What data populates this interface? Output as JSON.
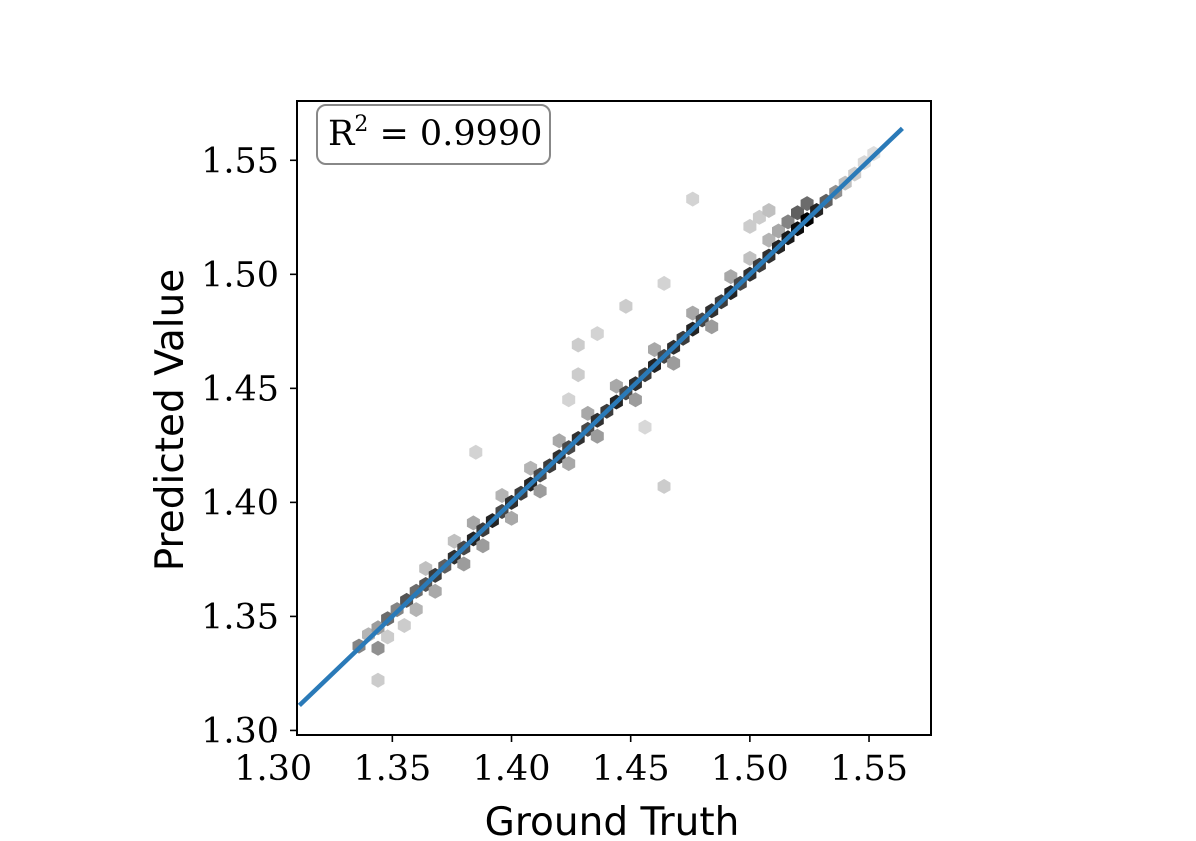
{
  "chart_data": {
    "type": "scatter",
    "style": "hexbin density with regression line",
    "xlabel": "Ground Truth",
    "ylabel": "Predicted Value",
    "xlim": [
      1.31,
      1.576
    ],
    "ylim": [
      1.298,
      1.576
    ],
    "xticks": [
      "1.30",
      "1.35",
      "1.40",
      "1.45",
      "1.50",
      "1.55"
    ],
    "yticks": [
      "1.30",
      "1.35",
      "1.40",
      "1.45",
      "1.50",
      "1.55"
    ],
    "annotation": {
      "r2_label": "R",
      "r2_sup": "2",
      "r2_value": " = 0.9990"
    },
    "fit_line": {
      "x": [
        1.311,
        1.564
      ],
      "y": [
        1.311,
        1.564
      ],
      "color": "#2a7ab8"
    },
    "hexbins": [
      {
        "x": 1.336,
        "y": 1.337,
        "d": 0.45
      },
      {
        "x": 1.34,
        "y": 1.342,
        "d": 0.25
      },
      {
        "x": 1.344,
        "y": 1.345,
        "d": 0.35
      },
      {
        "x": 1.344,
        "y": 1.336,
        "d": 0.4
      },
      {
        "x": 1.348,
        "y": 1.349,
        "d": 0.55
      },
      {
        "x": 1.348,
        "y": 1.341,
        "d": 0.15
      },
      {
        "x": 1.352,
        "y": 1.353,
        "d": 0.45
      },
      {
        "x": 1.355,
        "y": 1.346,
        "d": 0.15
      },
      {
        "x": 1.356,
        "y": 1.357,
        "d": 0.65
      },
      {
        "x": 1.36,
        "y": 1.361,
        "d": 0.55
      },
      {
        "x": 1.36,
        "y": 1.353,
        "d": 0.25
      },
      {
        "x": 1.364,
        "y": 1.364,
        "d": 0.65
      },
      {
        "x": 1.364,
        "y": 1.371,
        "d": 0.2
      },
      {
        "x": 1.368,
        "y": 1.368,
        "d": 0.75
      },
      {
        "x": 1.368,
        "y": 1.361,
        "d": 0.3
      },
      {
        "x": 1.372,
        "y": 1.372,
        "d": 0.6
      },
      {
        "x": 1.376,
        "y": 1.376,
        "d": 0.8
      },
      {
        "x": 1.376,
        "y": 1.383,
        "d": 0.2
      },
      {
        "x": 1.38,
        "y": 1.38,
        "d": 0.7
      },
      {
        "x": 1.38,
        "y": 1.373,
        "d": 0.35
      },
      {
        "x": 1.384,
        "y": 1.384,
        "d": 0.85
      },
      {
        "x": 1.384,
        "y": 1.391,
        "d": 0.3
      },
      {
        "x": 1.388,
        "y": 1.388,
        "d": 0.75
      },
      {
        "x": 1.388,
        "y": 1.381,
        "d": 0.35
      },
      {
        "x": 1.392,
        "y": 1.392,
        "d": 0.85
      },
      {
        "x": 1.396,
        "y": 1.396,
        "d": 0.7
      },
      {
        "x": 1.396,
        "y": 1.403,
        "d": 0.25
      },
      {
        "x": 1.4,
        "y": 1.4,
        "d": 0.8
      },
      {
        "x": 1.4,
        "y": 1.393,
        "d": 0.3
      },
      {
        "x": 1.404,
        "y": 1.404,
        "d": 0.75
      },
      {
        "x": 1.408,
        "y": 1.408,
        "d": 0.85
      },
      {
        "x": 1.408,
        "y": 1.415,
        "d": 0.25
      },
      {
        "x": 1.412,
        "y": 1.412,
        "d": 0.7
      },
      {
        "x": 1.412,
        "y": 1.405,
        "d": 0.35
      },
      {
        "x": 1.416,
        "y": 1.416,
        "d": 0.75
      },
      {
        "x": 1.42,
        "y": 1.42,
        "d": 0.8
      },
      {
        "x": 1.42,
        "y": 1.427,
        "d": 0.3
      },
      {
        "x": 1.424,
        "y": 1.424,
        "d": 0.7
      },
      {
        "x": 1.424,
        "y": 1.417,
        "d": 0.3
      },
      {
        "x": 1.428,
        "y": 1.428,
        "d": 0.8
      },
      {
        "x": 1.432,
        "y": 1.432,
        "d": 0.7
      },
      {
        "x": 1.432,
        "y": 1.439,
        "d": 0.3
      },
      {
        "x": 1.436,
        "y": 1.436,
        "d": 0.8
      },
      {
        "x": 1.436,
        "y": 1.429,
        "d": 0.35
      },
      {
        "x": 1.44,
        "y": 1.44,
        "d": 0.75
      },
      {
        "x": 1.444,
        "y": 1.444,
        "d": 0.85
      },
      {
        "x": 1.444,
        "y": 1.451,
        "d": 0.3
      },
      {
        "x": 1.448,
        "y": 1.448,
        "d": 0.7
      },
      {
        "x": 1.452,
        "y": 1.452,
        "d": 0.8
      },
      {
        "x": 1.452,
        "y": 1.445,
        "d": 0.35
      },
      {
        "x": 1.456,
        "y": 1.456,
        "d": 0.75
      },
      {
        "x": 1.46,
        "y": 1.46,
        "d": 0.85
      },
      {
        "x": 1.46,
        "y": 1.467,
        "d": 0.3
      },
      {
        "x": 1.464,
        "y": 1.464,
        "d": 0.7
      },
      {
        "x": 1.468,
        "y": 1.468,
        "d": 0.8
      },
      {
        "x": 1.468,
        "y": 1.461,
        "d": 0.35
      },
      {
        "x": 1.472,
        "y": 1.472,
        "d": 0.75
      },
      {
        "x": 1.476,
        "y": 1.476,
        "d": 0.85
      },
      {
        "x": 1.476,
        "y": 1.483,
        "d": 0.3
      },
      {
        "x": 1.48,
        "y": 1.48,
        "d": 0.7
      },
      {
        "x": 1.484,
        "y": 1.484,
        "d": 0.8
      },
      {
        "x": 1.484,
        "y": 1.477,
        "d": 0.35
      },
      {
        "x": 1.488,
        "y": 1.488,
        "d": 0.75
      },
      {
        "x": 1.492,
        "y": 1.492,
        "d": 0.85
      },
      {
        "x": 1.492,
        "y": 1.499,
        "d": 0.3
      },
      {
        "x": 1.496,
        "y": 1.496,
        "d": 0.7
      },
      {
        "x": 1.5,
        "y": 1.5,
        "d": 0.8
      },
      {
        "x": 1.5,
        "y": 1.507,
        "d": 0.2
      },
      {
        "x": 1.504,
        "y": 1.504,
        "d": 0.75
      },
      {
        "x": 1.508,
        "y": 1.508,
        "d": 0.8
      },
      {
        "x": 1.508,
        "y": 1.515,
        "d": 0.25
      },
      {
        "x": 1.512,
        "y": 1.512,
        "d": 0.85
      },
      {
        "x": 1.512,
        "y": 1.519,
        "d": 0.3
      },
      {
        "x": 1.516,
        "y": 1.516,
        "d": 0.9
      },
      {
        "x": 1.516,
        "y": 1.523,
        "d": 0.45
      },
      {
        "x": 1.52,
        "y": 1.52,
        "d": 0.95
      },
      {
        "x": 1.52,
        "y": 1.527,
        "d": 0.6
      },
      {
        "x": 1.524,
        "y": 1.524,
        "d": 1.0
      },
      {
        "x": 1.524,
        "y": 1.531,
        "d": 0.55
      },
      {
        "x": 1.528,
        "y": 1.528,
        "d": 0.85
      },
      {
        "x": 1.532,
        "y": 1.532,
        "d": 0.6
      },
      {
        "x": 1.536,
        "y": 1.536,
        "d": 0.4
      },
      {
        "x": 1.54,
        "y": 1.54,
        "d": 0.2
      },
      {
        "x": 1.544,
        "y": 1.544,
        "d": 0.15
      },
      {
        "x": 1.548,
        "y": 1.549,
        "d": 0.1
      },
      {
        "x": 1.552,
        "y": 1.553,
        "d": 0.08
      },
      {
        "x": 1.344,
        "y": 1.322,
        "d": 0.15
      },
      {
        "x": 1.385,
        "y": 1.422,
        "d": 0.12
      },
      {
        "x": 1.424,
        "y": 1.445,
        "d": 0.12
      },
      {
        "x": 1.428,
        "y": 1.456,
        "d": 0.15
      },
      {
        "x": 1.428,
        "y": 1.469,
        "d": 0.15
      },
      {
        "x": 1.436,
        "y": 1.474,
        "d": 0.12
      },
      {
        "x": 1.448,
        "y": 1.486,
        "d": 0.15
      },
      {
        "x": 1.456,
        "y": 1.433,
        "d": 0.1
      },
      {
        "x": 1.464,
        "y": 1.407,
        "d": 0.15
      },
      {
        "x": 1.464,
        "y": 1.496,
        "d": 0.12
      },
      {
        "x": 1.476,
        "y": 1.533,
        "d": 0.12
      },
      {
        "x": 1.5,
        "y": 1.521,
        "d": 0.15
      },
      {
        "x": 1.504,
        "y": 1.525,
        "d": 0.15
      },
      {
        "x": 1.508,
        "y": 1.528,
        "d": 0.2
      }
    ]
  }
}
